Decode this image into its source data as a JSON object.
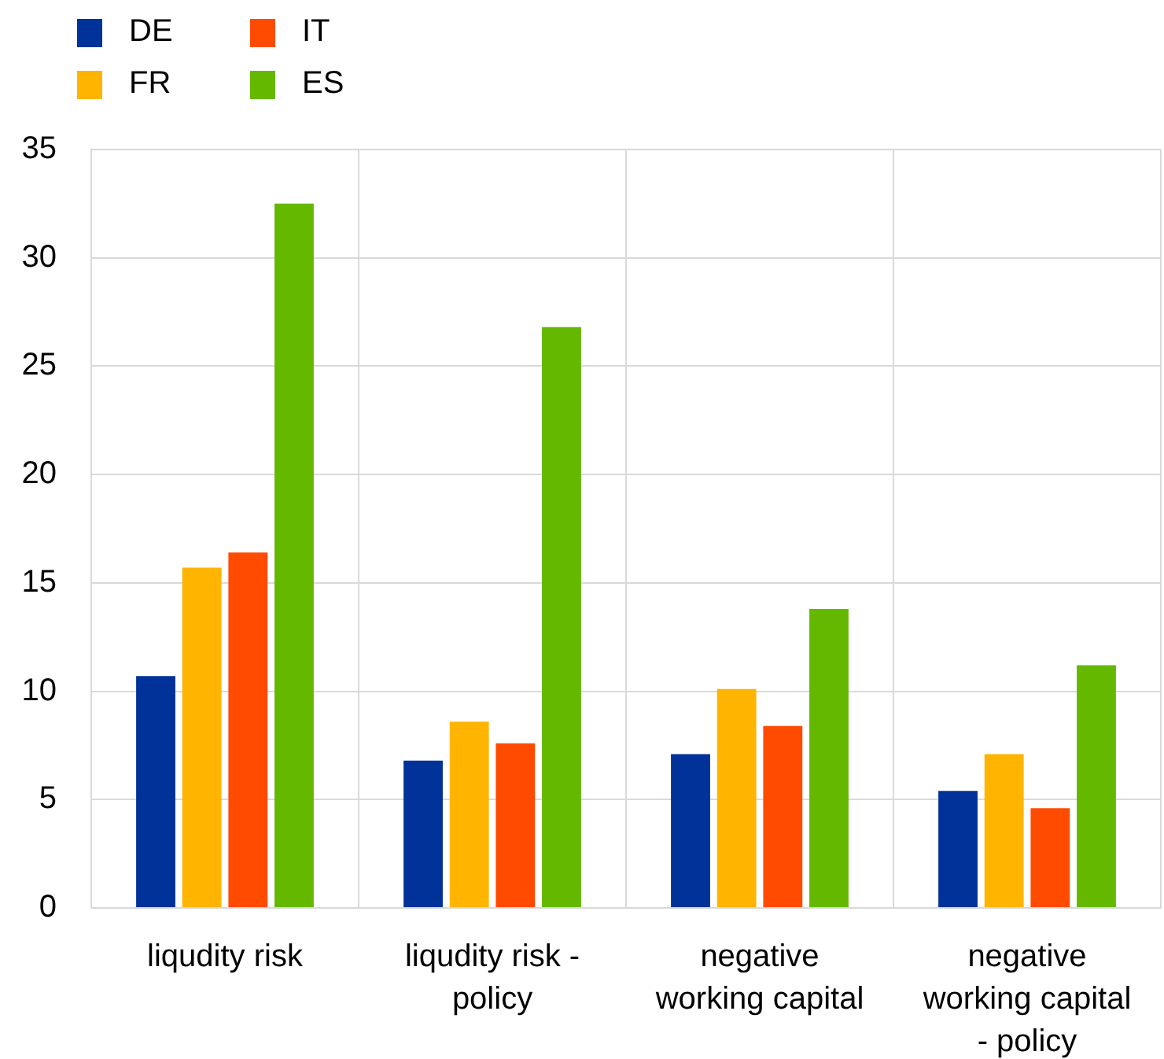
{
  "chart_data": {
    "type": "bar",
    "categories": [
      "liqudity risk",
      "liqudity risk - policy",
      "negative working capital",
      "negative working capital - policy"
    ],
    "series": [
      {
        "name": "DE",
        "color": "#003299",
        "values": [
          10.7,
          6.8,
          7.1,
          5.4
        ]
      },
      {
        "name": "FR",
        "color": "#ffb400",
        "values": [
          15.7,
          8.6,
          10.1,
          7.1
        ]
      },
      {
        "name": "IT",
        "color": "#ff4b00",
        "values": [
          16.4,
          7.6,
          8.4,
          4.6
        ]
      },
      {
        "name": "ES",
        "color": "#65b800",
        "values": [
          32.5,
          26.8,
          13.8,
          11.2
        ]
      }
    ],
    "ylim": [
      0,
      35
    ],
    "yticks": [
      0,
      5,
      10,
      15,
      20,
      25,
      30,
      35
    ],
    "grid": true,
    "legend": "top left"
  }
}
